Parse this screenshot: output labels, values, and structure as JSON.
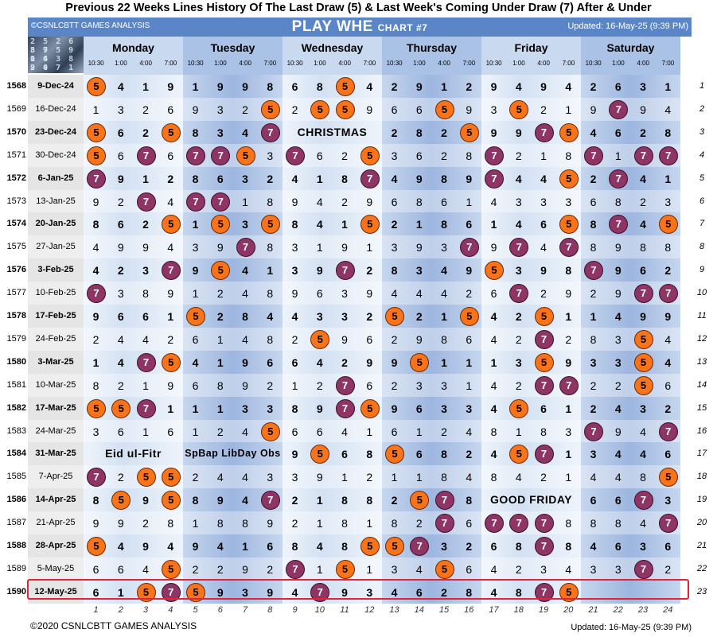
{
  "title": "Previous 22 Weeks Lines History Of The Last Draw (5) & Last Week's Coming Under Draw (7) After & Under",
  "header": {
    "copyright": "©CSNLCBTT GAMES ANALYSIS",
    "name": "PLAY WHE",
    "chart": "CHART #7",
    "updated": "Updated: 16-May-25 (9:39 PM)"
  },
  "logo_text": [
    "2 5 2 6 8 9",
    "3 7 5 9 0 4",
    "1 6 3 8 2 0",
    "9 4 7 1 5 3"
  ],
  "days": [
    "Monday",
    "Tuesday",
    "Wednesday",
    "Thursday",
    "Friday",
    "Saturday"
  ],
  "times": [
    "10:30",
    "1:00",
    "4:00",
    "7:00"
  ],
  "rows": [
    {
      "num": "1568",
      "date": "9-Dec-24",
      "bold": true,
      "vals": [
        "5",
        "4",
        "1",
        "9",
        "1",
        "9",
        "9",
        "8",
        "6",
        "8",
        "5",
        "4",
        "2",
        "9",
        "1",
        "2",
        "9",
        "4",
        "9",
        "4",
        "2",
        "6",
        "3",
        "1"
      ]
    },
    {
      "num": "1569",
      "date": "16-Dec-24",
      "bold": false,
      "vals": [
        "1",
        "3",
        "2",
        "6",
        "9",
        "3",
        "2",
        "5",
        "2",
        "5",
        "5",
        "9",
        "6",
        "6",
        "5",
        "9",
        "3",
        "5",
        "2",
        "1",
        "9",
        "7",
        "9",
        "4"
      ]
    },
    {
      "num": "1570",
      "date": "23-Dec-24",
      "bold": true,
      "vals": [
        "5",
        "6",
        "2",
        "5",
        "8",
        "3",
        "4",
        "7",
        "",
        "",
        "",
        "",
        "2",
        "8",
        "2",
        "5",
        "9",
        "9",
        "7",
        "5",
        "4",
        "6",
        "2",
        "8"
      ],
      "holiday": {
        "text": "CHRISTMAS",
        "start": 8,
        "span": 4
      }
    },
    {
      "num": "1571",
      "date": "30-Dec-24",
      "bold": false,
      "vals": [
        "5",
        "6",
        "7",
        "6",
        "7",
        "7",
        "5",
        "3",
        "7",
        "6",
        "2",
        "5",
        "3",
        "6",
        "2",
        "8",
        "7",
        "2",
        "1",
        "8",
        "7",
        "1",
        "7",
        "7"
      ]
    },
    {
      "num": "1572",
      "date": "6-Jan-25",
      "bold": true,
      "vals": [
        "7",
        "9",
        "1",
        "2",
        "8",
        "6",
        "3",
        "2",
        "4",
        "1",
        "8",
        "7",
        "4",
        "9",
        "8",
        "9",
        "7",
        "4",
        "4",
        "5",
        "2",
        "7",
        "4",
        "1"
      ]
    },
    {
      "num": "1573",
      "date": "13-Jan-25",
      "bold": false,
      "vals": [
        "9",
        "2",
        "7",
        "4",
        "7",
        "7",
        "1",
        "8",
        "9",
        "4",
        "2",
        "9",
        "6",
        "8",
        "6",
        "1",
        "4",
        "3",
        "3",
        "3",
        "6",
        "8",
        "2",
        "3"
      ]
    },
    {
      "num": "1574",
      "date": "20-Jan-25",
      "bold": true,
      "vals": [
        "8",
        "6",
        "2",
        "5",
        "1",
        "5",
        "3",
        "5",
        "8",
        "4",
        "1",
        "5",
        "2",
        "1",
        "8",
        "6",
        "1",
        "4",
        "6",
        "5",
        "8",
        "7",
        "4",
        "5"
      ]
    },
    {
      "num": "1575",
      "date": "27-Jan-25",
      "bold": false,
      "vals": [
        "4",
        "9",
        "9",
        "4",
        "3",
        "9",
        "7",
        "8",
        "3",
        "1",
        "9",
        "1",
        "3",
        "9",
        "3",
        "7",
        "9",
        "7",
        "4",
        "7",
        "8",
        "9",
        "8",
        "8"
      ]
    },
    {
      "num": "1576",
      "date": "3-Feb-25",
      "bold": true,
      "vals": [
        "4",
        "2",
        "3",
        "7",
        "9",
        "5",
        "4",
        "1",
        "3",
        "9",
        "7",
        "2",
        "8",
        "3",
        "4",
        "9",
        "5",
        "3",
        "9",
        "8",
        "7",
        "9",
        "6",
        "2"
      ]
    },
    {
      "num": "1577",
      "date": "10-Feb-25",
      "bold": false,
      "vals": [
        "7",
        "3",
        "8",
        "9",
        "1",
        "2",
        "4",
        "8",
        "9",
        "6",
        "3",
        "9",
        "4",
        "4",
        "4",
        "2",
        "6",
        "7",
        "2",
        "9",
        "2",
        "9",
        "7",
        "7"
      ]
    },
    {
      "num": "1578",
      "date": "17-Feb-25",
      "bold": true,
      "vals": [
        "9",
        "6",
        "6",
        "1",
        "5",
        "2",
        "8",
        "4",
        "4",
        "3",
        "3",
        "2",
        "5",
        "2",
        "1",
        "5",
        "4",
        "2",
        "5",
        "1",
        "1",
        "4",
        "9",
        "9"
      ]
    },
    {
      "num": "1579",
      "date": "24-Feb-25",
      "bold": false,
      "vals": [
        "2",
        "4",
        "4",
        "2",
        "6",
        "1",
        "4",
        "8",
        "2",
        "5",
        "9",
        "6",
        "2",
        "9",
        "8",
        "6",
        "4",
        "2",
        "7",
        "2",
        "8",
        "3",
        "5",
        "4"
      ]
    },
    {
      "num": "1580",
      "date": "3-Mar-25",
      "bold": true,
      "vals": [
        "1",
        "4",
        "7",
        "5",
        "4",
        "1",
        "9",
        "6",
        "6",
        "4",
        "2",
        "9",
        "9",
        "5",
        "1",
        "1",
        "1",
        "3",
        "5",
        "9",
        "3",
        "3",
        "5",
        "4"
      ]
    },
    {
      "num": "1581",
      "date": "10-Mar-25",
      "bold": false,
      "vals": [
        "8",
        "2",
        "1",
        "9",
        "6",
        "8",
        "9",
        "2",
        "1",
        "2",
        "7",
        "6",
        "2",
        "3",
        "3",
        "1",
        "4",
        "2",
        "7",
        "7",
        "2",
        "2",
        "5",
        "6"
      ]
    },
    {
      "num": "1582",
      "date": "17-Mar-25",
      "bold": true,
      "vals": [
        "5",
        "5",
        "7",
        "1",
        "1",
        "1",
        "3",
        "3",
        "8",
        "9",
        "7",
        "5",
        "9",
        "6",
        "3",
        "3",
        "4",
        "5",
        "6",
        "1",
        "2",
        "4",
        "3",
        "2"
      ]
    },
    {
      "num": "1583",
      "date": "24-Mar-25",
      "bold": false,
      "vals": [
        "3",
        "6",
        "1",
        "6",
        "1",
        "2",
        "4",
        "5",
        "6",
        "6",
        "4",
        "1",
        "6",
        "1",
        "2",
        "4",
        "8",
        "1",
        "8",
        "3",
        "7",
        "9",
        "4",
        "7"
      ]
    },
    {
      "num": "1584",
      "date": "31-Mar-25",
      "bold": true,
      "vals": [
        "",
        "",
        "",
        "",
        "",
        "",
        "",
        "",
        "9",
        "5",
        "6",
        "8",
        "5",
        "6",
        "8",
        "2",
        "4",
        "5",
        "7",
        "1",
        "3",
        "4",
        "4",
        "6"
      ],
      "holidays": [
        {
          "text": "Eid ul-Fitr",
          "start": 0,
          "span": 4
        },
        {
          "text": "SpBap LibDay Obs",
          "start": 4,
          "span": 4
        }
      ]
    },
    {
      "num": "1585",
      "date": "7-Apr-25",
      "bold": false,
      "vals": [
        "7",
        "2",
        "5",
        "5",
        "2",
        "4",
        "4",
        "3",
        "3",
        "9",
        "1",
        "2",
        "1",
        "1",
        "8",
        "4",
        "8",
        "4",
        "2",
        "1",
        "4",
        "4",
        "8",
        "5"
      ]
    },
    {
      "num": "1586",
      "date": "14-Apr-25",
      "bold": true,
      "vals": [
        "8",
        "5",
        "9",
        "5",
        "8",
        "9",
        "4",
        "7",
        "2",
        "1",
        "8",
        "8",
        "2",
        "5",
        "7",
        "8",
        "",
        "",
        "",
        "",
        "6",
        "6",
        "7",
        "3"
      ],
      "holiday": {
        "text": "GOOD FRIDAY",
        "start": 16,
        "span": 4
      }
    },
    {
      "num": "1587",
      "date": "21-Apr-25",
      "bold": false,
      "vals": [
        "9",
        "9",
        "2",
        "8",
        "1",
        "8",
        "8",
        "9",
        "2",
        "1",
        "8",
        "1",
        "8",
        "2",
        "7",
        "6",
        "7",
        "7",
        "7",
        "8",
        "8",
        "8",
        "4",
        "7"
      ]
    },
    {
      "num": "1588",
      "date": "28-Apr-25",
      "bold": true,
      "vals": [
        "5",
        "4",
        "9",
        "4",
        "9",
        "4",
        "1",
        "6",
        "8",
        "4",
        "8",
        "5",
        "5",
        "7",
        "3",
        "2",
        "6",
        "8",
        "7",
        "8",
        "4",
        "6",
        "3",
        "6"
      ]
    },
    {
      "num": "1589",
      "date": "5-May-25",
      "bold": false,
      "vals": [
        "6",
        "6",
        "4",
        "5",
        "2",
        "2",
        "9",
        "2",
        "7",
        "1",
        "5",
        "1",
        "3",
        "4",
        "5",
        "6",
        "4",
        "2",
        "3",
        "4",
        "3",
        "3",
        "7",
        "2"
      ]
    },
    {
      "num": "1590",
      "date": "12-May-25",
      "bold": true,
      "vals": [
        "6",
        "1",
        "5",
        "7",
        "5",
        "9",
        "3",
        "9",
        "4",
        "7",
        "9",
        "3",
        "4",
        "6",
        "2",
        "8",
        "4",
        "8",
        "7",
        "5",
        "",
        "",
        "",
        ""
      ]
    }
  ],
  "right_numbers": [
    "1",
    "2",
    "3",
    "4",
    "5",
    "6",
    "7",
    "8",
    "9",
    "10",
    "11",
    "12",
    "13",
    "14",
    "15",
    "16",
    "17",
    "18",
    "19",
    "20",
    "21",
    "22",
    "23"
  ],
  "col_numbers": [
    "1",
    "2",
    "3",
    "4",
    "5",
    "6",
    "7",
    "8",
    "9",
    "10",
    "11",
    "12",
    "13",
    "14",
    "15",
    "16",
    "17",
    "18",
    "19",
    "20",
    "21",
    "22",
    "23",
    "24"
  ],
  "footer": {
    "left": "©2020 CSNLCBTT GAMES ANALYSIS",
    "right": "Updated: 16-May-25 (9:39 PM)"
  },
  "colors": {
    "five": "#f8731a",
    "seven": "#8e3565",
    "header": "#5a86c8",
    "highlight": "#e0243a"
  }
}
